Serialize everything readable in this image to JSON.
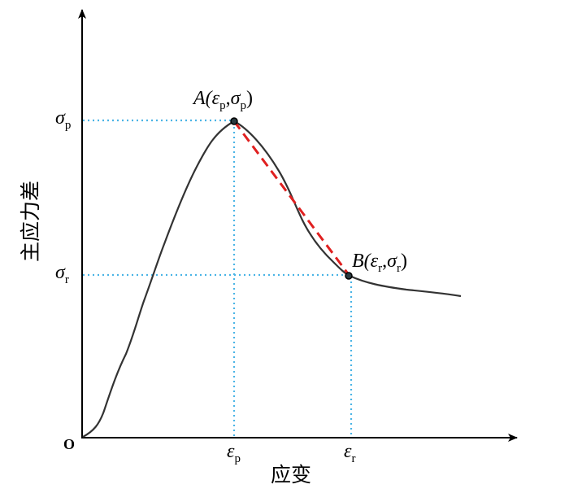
{
  "diagram": {
    "y_axis_label": "主应力差",
    "x_axis_label": "应变",
    "origin_label": "O",
    "y_ticks": [
      {
        "symbol": "σ",
        "sub": "p"
      },
      {
        "symbol": "σ",
        "sub": "r"
      }
    ],
    "x_ticks": [
      {
        "symbol": "ε",
        "sub": "p"
      },
      {
        "symbol": "ε",
        "sub": "r"
      }
    ],
    "points": [
      {
        "name": "A",
        "open": "A(",
        "e": "ε",
        "e_sub": "p",
        "comma": ",",
        "s": "σ",
        "s_sub": "p",
        "close": ")"
      },
      {
        "name": "B",
        "open": "B(",
        "e": "ε",
        "e_sub": "r",
        "comma": ",",
        "s": "σ",
        "s_sub": "r",
        "close": ")"
      }
    ],
    "colors": {
      "curve": "#333333",
      "guide_lines": "#4ab4e6",
      "secant": "#e02020",
      "axes": "#000000"
    }
  }
}
